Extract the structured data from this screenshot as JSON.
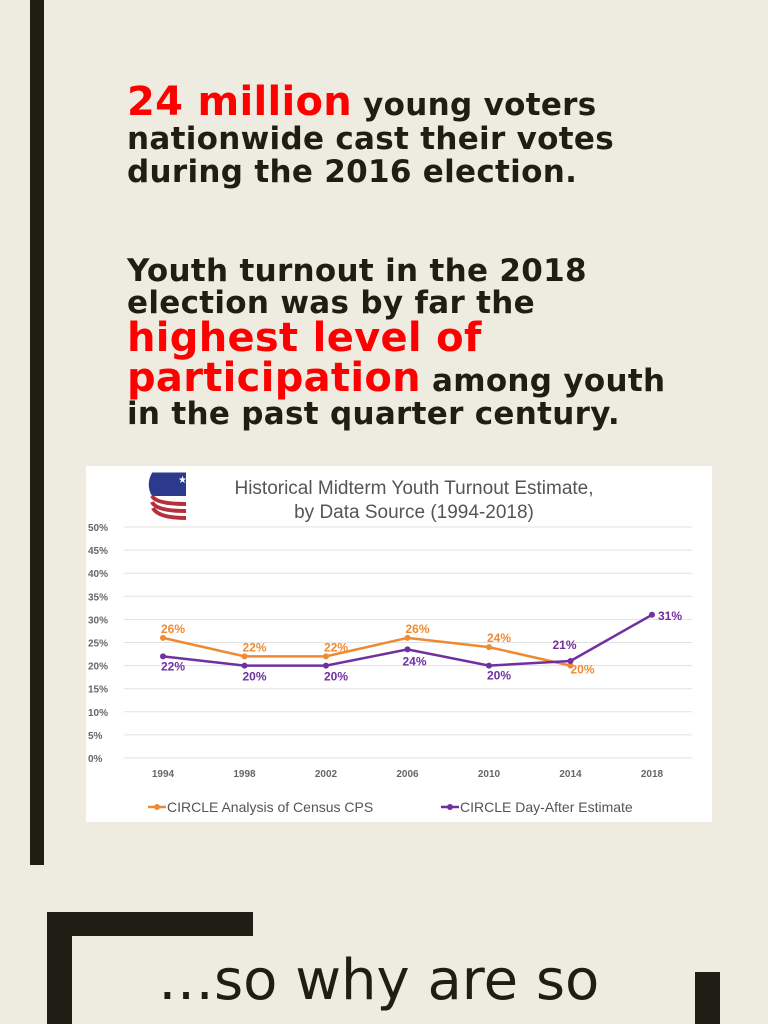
{
  "slide": {
    "para1": {
      "highlight": "24 million",
      "rest_line1": " young voters",
      "line2": "nationwide cast their votes",
      "line3": "during the 2016 election."
    },
    "para2": {
      "line1": "Youth turnout in the 2018",
      "line2": "election was by far the",
      "highlight_line1": "highest level of",
      "highlight_line2": "participation",
      "rest_line4": " among youth",
      "line5": "in the past quarter century."
    },
    "bottom_text": "…so why are so",
    "colors": {
      "accent": "#fe0000",
      "background": "#eeebe1",
      "bars": "#1e1e14"
    }
  },
  "chart_data": {
    "type": "line",
    "title": "Historical Midterm Youth Turnout Estimate,",
    "subtitle": "by Data Source (1994-2018)",
    "categories": [
      "1994",
      "1998",
      "2002",
      "2006",
      "2010",
      "2014",
      "2018"
    ],
    "ylim": [
      0,
      50
    ],
    "yticks": [
      "0%",
      "5%",
      "10%",
      "15%",
      "20%",
      "25%",
      "30%",
      "35%",
      "40%",
      "45%",
      "50%"
    ],
    "grid": true,
    "legend": "bottom",
    "series": [
      {
        "name": "CIRCLE Analysis of Census CPS",
        "color": "#ef8a32",
        "values": [
          26,
          22,
          22,
          26,
          24,
          20,
          null
        ],
        "labels": [
          "26%",
          "22%",
          "22%",
          "26%",
          "24%",
          "20%",
          ""
        ]
      },
      {
        "name": "CIRCLE Day-After Estimate",
        "color": "#7030a0",
        "values": [
          22,
          20,
          20,
          23.5,
          20,
          21,
          31
        ],
        "labels": [
          "22%",
          "20%",
          "20%",
          "24%",
          "20%",
          "21%",
          "31%"
        ]
      }
    ]
  }
}
